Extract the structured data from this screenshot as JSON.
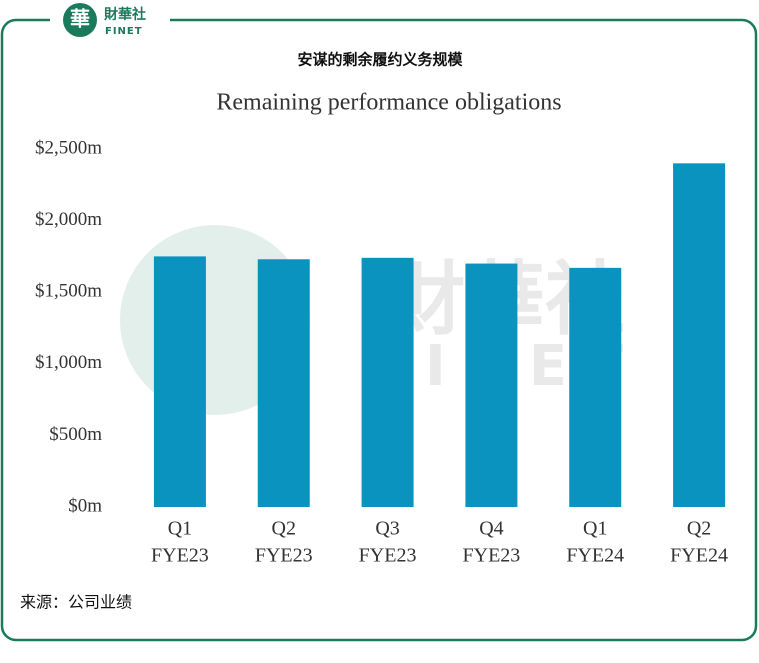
{
  "brand": {
    "name": "財華社",
    "sub": "FINET"
  },
  "chart_data": {
    "type": "bar",
    "title": "安谋的剩余履约义务规模",
    "subtitle": "Remaining performance obligations",
    "categories": [
      [
        "Q1",
        "FYE23"
      ],
      [
        "Q2",
        "FYE23"
      ],
      [
        "Q3",
        "FYE23"
      ],
      [
        "Q4",
        "FYE23"
      ],
      [
        "Q1",
        "FYE24"
      ],
      [
        "Q2",
        "FYE24"
      ]
    ],
    "values": [
      1750,
      1730,
      1740,
      1700,
      1670,
      2400
    ],
    "color": "#0a93bf",
    "ylim": [
      0,
      2500
    ],
    "yticks": [
      {
        "value": 0,
        "label": "$0m"
      },
      {
        "value": 500,
        "label": "$500m"
      },
      {
        "value": 1000,
        "label": "$1,000m"
      },
      {
        "value": 1500,
        "label": "$1,500m"
      },
      {
        "value": 2000,
        "label": "$2,000m"
      },
      {
        "value": 2500,
        "label": "$2,500m"
      }
    ],
    "grid": false
  },
  "source": "来源：公司业绩"
}
